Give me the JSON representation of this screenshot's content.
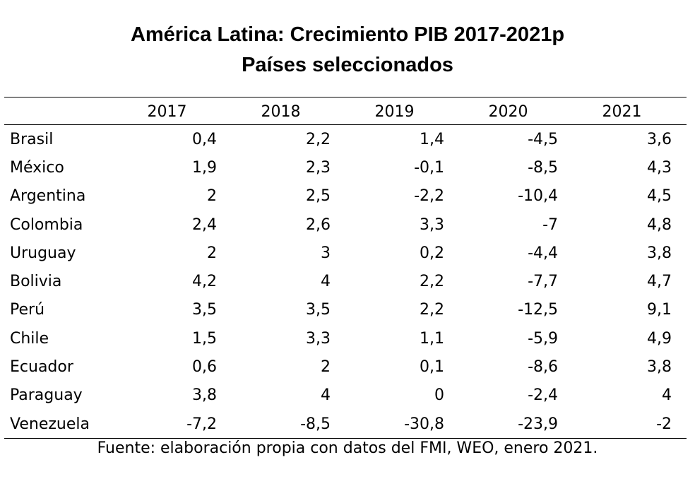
{
  "title_line1": "América Latina: Crecimiento PIB 2017-2021p",
  "title_line2": "Países seleccionados",
  "source": "Fuente: elaboración propia con datos del FMI, WEO, enero 2021.",
  "chart_data": {
    "type": "table",
    "columns": [
      "2017",
      "2018",
      "2019",
      "2020",
      "2021"
    ],
    "rows": [
      {
        "label": "Brasil",
        "cells": [
          "0,4",
          "2,2",
          "1,4",
          "-4,5",
          "3,6"
        ]
      },
      {
        "label": "México",
        "cells": [
          "1,9",
          "2,3",
          "-0,1",
          "-8,5",
          "4,3"
        ]
      },
      {
        "label": "Argentina",
        "cells": [
          "2",
          "2,5",
          "-2,2",
          "-10,4",
          "4,5"
        ]
      },
      {
        "label": "Colombia",
        "cells": [
          "2,4",
          "2,6",
          "3,3",
          "-7",
          "4,8"
        ]
      },
      {
        "label": "Uruguay",
        "cells": [
          "2",
          "3",
          "0,2",
          "-4,4",
          "3,8"
        ]
      },
      {
        "label": "Bolivia",
        "cells": [
          "4,2",
          "4",
          "2,2",
          "-7,7",
          "4,7"
        ]
      },
      {
        "label": "Perú",
        "cells": [
          "3,5",
          "3,5",
          "2,2",
          "-12,5",
          "9,1"
        ]
      },
      {
        "label": "Chile",
        "cells": [
          "1,5",
          "3,3",
          "1,1",
          "-5,9",
          "4,9"
        ]
      },
      {
        "label": "Ecuador",
        "cells": [
          "0,6",
          "2",
          "0,1",
          "-8,6",
          "3,8"
        ]
      },
      {
        "label": "Paraguay",
        "cells": [
          "3,8",
          "4",
          "0",
          "-2,4",
          "4"
        ]
      },
      {
        "label": "Venezuela",
        "cells": [
          "-7,2",
          "-8,5",
          "-30,8",
          "-23,9",
          "-2"
        ]
      }
    ]
  }
}
